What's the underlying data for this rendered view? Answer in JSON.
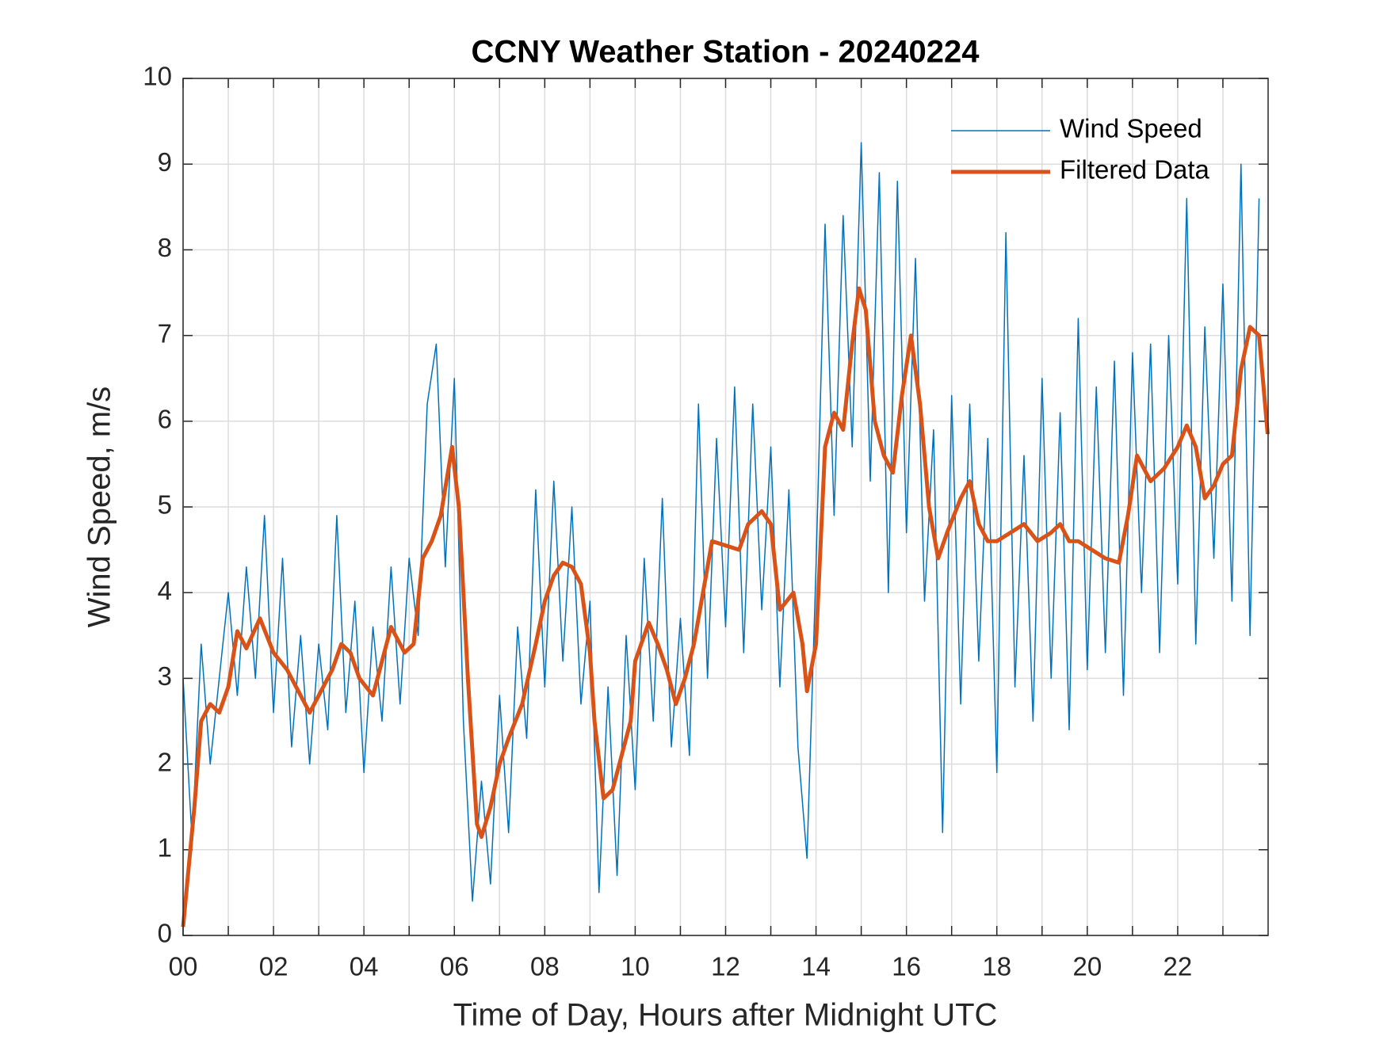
{
  "chart_data": {
    "type": "line",
    "title": "CCNY Weather Station - 20240224",
    "xlabel": "Time of Day, Hours after Midnight UTC",
    "ylabel": "Wind Speed, m/s",
    "xlim": [
      0,
      24
    ],
    "ylim": [
      0,
      10
    ],
    "xticks": [
      {
        "value": 0,
        "label": "00"
      },
      {
        "value": 2,
        "label": "02"
      },
      {
        "value": 4,
        "label": "04"
      },
      {
        "value": 6,
        "label": "06"
      },
      {
        "value": 8,
        "label": "08"
      },
      {
        "value": 10,
        "label": "10"
      },
      {
        "value": 12,
        "label": "12"
      },
      {
        "value": 14,
        "label": "14"
      },
      {
        "value": 16,
        "label": "16"
      },
      {
        "value": 18,
        "label": "18"
      },
      {
        "value": 20,
        "label": "20"
      },
      {
        "value": 22,
        "label": "22"
      }
    ],
    "xminorticks": [
      1,
      3,
      5,
      7,
      9,
      11,
      13,
      15,
      17,
      19,
      21,
      23
    ],
    "yticks": [
      0,
      1,
      2,
      3,
      4,
      5,
      6,
      7,
      8,
      9,
      10
    ],
    "grid": true,
    "legend": "upper right",
    "series": [
      {
        "name": "Wind Speed",
        "color": "#0072BD",
        "linewidth": 1.5,
        "x": [
          0,
          0.2,
          0.4,
          0.6,
          0.8,
          1,
          1.2,
          1.4,
          1.6,
          1.8,
          2,
          2.2,
          2.4,
          2.6,
          2.8,
          3,
          3.2,
          3.4,
          3.6,
          3.8,
          4,
          4.2,
          4.4,
          4.6,
          4.8,
          5,
          5.2,
          5.4,
          5.6,
          5.8,
          6,
          6.2,
          6.4,
          6.6,
          6.8,
          7,
          7.2,
          7.4,
          7.6,
          7.8,
          8,
          8.2,
          8.4,
          8.6,
          8.8,
          9,
          9.2,
          9.4,
          9.6,
          9.8,
          10,
          10.2,
          10.4,
          10.6,
          10.8,
          11,
          11.2,
          11.4,
          11.6,
          11.8,
          12,
          12.2,
          12.4,
          12.6,
          12.8,
          13,
          13.2,
          13.4,
          13.6,
          13.8,
          14,
          14.2,
          14.4,
          14.6,
          14.8,
          15,
          15.2,
          15.4,
          15.6,
          15.8,
          16,
          16.2,
          16.4,
          16.6,
          16.8,
          17,
          17.2,
          17.4,
          17.6,
          17.8,
          18,
          18.2,
          18.4,
          18.6,
          18.8,
          19,
          19.2,
          19.4,
          19.6,
          19.8,
          20,
          20.2,
          20.4,
          20.6,
          20.8,
          21,
          21.2,
          21.4,
          21.6,
          21.8,
          22,
          22.2,
          22.4,
          22.6,
          22.8,
          23,
          23.2,
          23.4,
          23.6,
          23.8
        ],
        "values": [
          3.0,
          1.1,
          3.4,
          2.0,
          3.0,
          4.0,
          2.8,
          4.3,
          3.0,
          4.9,
          2.6,
          4.4,
          2.2,
          3.5,
          2.0,
          3.4,
          2.4,
          4.9,
          2.6,
          3.9,
          1.9,
          3.6,
          2.5,
          4.3,
          2.7,
          4.4,
          3.5,
          6.2,
          6.9,
          4.3,
          6.5,
          2.5,
          0.4,
          1.8,
          0.6,
          2.8,
          1.2,
          3.6,
          2.3,
          5.2,
          2.9,
          5.3,
          3.2,
          5.0,
          2.7,
          3.9,
          0.5,
          2.9,
          0.7,
          3.5,
          1.7,
          4.4,
          2.5,
          5.1,
          2.2,
          3.7,
          2.1,
          6.2,
          3.0,
          5.8,
          3.6,
          6.4,
          3.3,
          6.2,
          3.8,
          5.7,
          2.9,
          5.2,
          2.2,
          0.9,
          4.3,
          8.3,
          4.9,
          8.4,
          5.7,
          9.25,
          5.3,
          8.9,
          4.0,
          8.8,
          4.7,
          7.9,
          3.9,
          5.9,
          1.2,
          6.3,
          2.7,
          6.2,
          3.2,
          5.8,
          1.9,
          8.2,
          2.9,
          5.6,
          2.5,
          6.5,
          3.0,
          6.1,
          2.4,
          7.2,
          3.1,
          6.4,
          3.3,
          6.7,
          2.8,
          6.8,
          4.0,
          6.9,
          3.3,
          7.0,
          4.1,
          8.6,
          3.4,
          7.1,
          4.4,
          7.6,
          3.9,
          9.0,
          3.5,
          8.6
        ]
      },
      {
        "name": "Filtered Data",
        "color": "#D95319",
        "linewidth": 5,
        "x": [
          0,
          0.25,
          0.4,
          0.6,
          0.8,
          1.0,
          1.2,
          1.4,
          1.7,
          2.0,
          2.3,
          2.6,
          2.8,
          3.0,
          3.3,
          3.5,
          3.7,
          3.9,
          4.2,
          4.4,
          4.6,
          4.9,
          5.1,
          5.3,
          5.5,
          5.7,
          5.95,
          6.1,
          6.3,
          6.5,
          6.6,
          6.8,
          7.0,
          7.2,
          7.5,
          7.8,
          8.0,
          8.2,
          8.4,
          8.6,
          8.8,
          9.0,
          9.1,
          9.3,
          9.5,
          9.7,
          9.9,
          10.0,
          10.3,
          10.5,
          10.7,
          10.9,
          11.1,
          11.3,
          11.5,
          11.7,
          12.0,
          12.3,
          12.5,
          12.8,
          13.0,
          13.2,
          13.5,
          13.7,
          13.8,
          14.0,
          14.2,
          14.4,
          14.6,
          14.8,
          14.95,
          15.1,
          15.3,
          15.5,
          15.7,
          15.9,
          16.1,
          16.3,
          16.5,
          16.7,
          16.9,
          17.2,
          17.4,
          17.6,
          17.8,
          18.0,
          18.3,
          18.6,
          18.9,
          19.2,
          19.4,
          19.6,
          19.8,
          20.1,
          20.4,
          20.7,
          20.9,
          21.1,
          21.4,
          21.7,
          22.0,
          22.2,
          22.4,
          22.6,
          22.8,
          23.0,
          23.2,
          23.4,
          23.6,
          23.8,
          23.99
        ],
        "values": [
          0.1,
          1.5,
          2.5,
          2.7,
          2.6,
          2.9,
          3.55,
          3.35,
          3.7,
          3.3,
          3.1,
          2.8,
          2.6,
          2.8,
          3.1,
          3.4,
          3.3,
          3.0,
          2.8,
          3.2,
          3.6,
          3.3,
          3.4,
          4.4,
          4.6,
          4.9,
          5.7,
          5.0,
          3.0,
          1.3,
          1.15,
          1.5,
          2.0,
          2.3,
          2.7,
          3.4,
          3.9,
          4.2,
          4.35,
          4.3,
          4.1,
          3.3,
          2.5,
          1.6,
          1.7,
          2.1,
          2.5,
          3.2,
          3.65,
          3.4,
          3.1,
          2.7,
          3.0,
          3.4,
          4.0,
          4.6,
          4.55,
          4.5,
          4.8,
          4.95,
          4.8,
          3.8,
          4.0,
          3.4,
          2.85,
          3.4,
          5.7,
          6.1,
          5.9,
          6.9,
          7.55,
          7.3,
          6.0,
          5.6,
          5.4,
          6.3,
          7.0,
          6.2,
          5.0,
          4.4,
          4.7,
          5.1,
          5.3,
          4.8,
          4.6,
          4.6,
          4.7,
          4.8,
          4.6,
          4.7,
          4.8,
          4.6,
          4.6,
          4.5,
          4.4,
          4.35,
          4.9,
          5.6,
          5.3,
          5.45,
          5.7,
          5.95,
          5.7,
          5.1,
          5.25,
          5.5,
          5.6,
          6.6,
          7.1,
          7.0,
          5.85
        ]
      }
    ]
  }
}
